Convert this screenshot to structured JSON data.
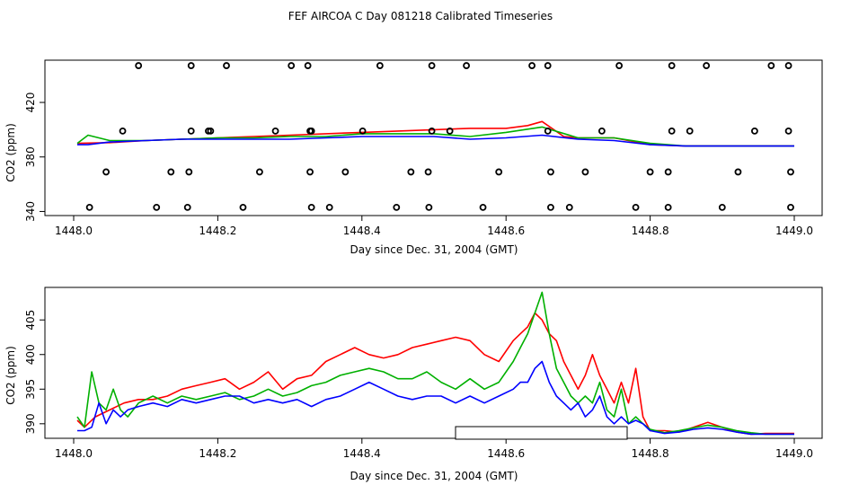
{
  "title": "FEF AIRCOA C  Day 081218  Calibrated Timeseries",
  "chart_data": [
    {
      "type": "line",
      "name": "top-panel",
      "xlabel": "Day since Dec. 31, 2004 (GMT)",
      "ylabel": "CO2 (ppm)",
      "xlim": [
        1448.0,
        1449.0
      ],
      "ylim": [
        337,
        451
      ],
      "xticks": [
        1448.0,
        1448.2,
        1448.4,
        1448.6,
        1448.8,
        1449.0
      ],
      "xtick_labels": [
        "1448.0",
        "1448.2",
        "1448.4",
        "1448.6",
        "1448.8",
        "1449.0"
      ],
      "yticks": [
        340,
        380,
        420
      ],
      "ytick_labels": [
        "340",
        "380",
        "420"
      ],
      "series": [
        {
          "name": "red",
          "color": "#ff0000",
          "x": [
            1448.005,
            1448.05,
            1448.1,
            1448.15,
            1448.2,
            1448.25,
            1448.3,
            1448.35,
            1448.4,
            1448.45,
            1448.5,
            1448.55,
            1448.6,
            1448.63,
            1448.65,
            1448.68,
            1448.7,
            1448.75,
            1448.8,
            1448.85,
            1448.9,
            1448.95,
            1449.0
          ],
          "y": [
            390,
            390.5,
            392,
            393,
            394,
            395,
            396,
            397,
            398,
            399,
            400,
            401,
            401,
            403,
            406,
            395,
            394,
            394,
            389,
            388,
            388,
            388,
            388
          ]
        },
        {
          "name": "green",
          "color": "#00b000",
          "x": [
            1448.005,
            1448.02,
            1448.05,
            1448.1,
            1448.15,
            1448.2,
            1448.25,
            1448.3,
            1448.35,
            1448.4,
            1448.45,
            1448.5,
            1448.55,
            1448.6,
            1448.65,
            1448.7,
            1448.75,
            1448.8,
            1448.85,
            1448.9,
            1448.95,
            1449.0
          ],
          "y": [
            390,
            396,
            392,
            392,
            393,
            394,
            394,
            395,
            395,
            397,
            397,
            397,
            395,
            398,
            402,
            394,
            394,
            390,
            388,
            388,
            388,
            388
          ]
        },
        {
          "name": "blue",
          "color": "#0000ff",
          "x": [
            1448.005,
            1448.02,
            1448.05,
            1448.1,
            1448.15,
            1448.2,
            1448.25,
            1448.3,
            1448.35,
            1448.4,
            1448.45,
            1448.5,
            1448.55,
            1448.6,
            1448.65,
            1448.7,
            1448.75,
            1448.8,
            1448.85,
            1448.9,
            1448.95,
            1449.0
          ],
          "y": [
            389,
            389,
            391,
            392,
            393,
            393,
            393,
            393,
            394,
            395,
            395,
            395,
            393,
            394,
            396,
            393,
            392,
            389,
            388,
            388,
            388,
            388
          ]
        }
      ],
      "points": [
        {
          "x": 1448.09,
          "y": 447
        },
        {
          "x": 1448.163,
          "y": 447
        },
        {
          "x": 1448.212,
          "y": 447
        },
        {
          "x": 1448.302,
          "y": 447
        },
        {
          "x": 1448.325,
          "y": 447
        },
        {
          "x": 1448.425,
          "y": 447
        },
        {
          "x": 1448.497,
          "y": 447
        },
        {
          "x": 1448.545,
          "y": 447
        },
        {
          "x": 1448.636,
          "y": 447
        },
        {
          "x": 1448.658,
          "y": 447
        },
        {
          "x": 1448.757,
          "y": 447
        },
        {
          "x": 1448.83,
          "y": 447
        },
        {
          "x": 1448.878,
          "y": 447
        },
        {
          "x": 1448.968,
          "y": 447
        },
        {
          "x": 1448.992,
          "y": 447
        },
        {
          "x": 1448.068,
          "y": 399
        },
        {
          "x": 1448.163,
          "y": 399
        },
        {
          "x": 1448.187,
          "y": 399
        },
        {
          "x": 1448.19,
          "y": 399
        },
        {
          "x": 1448.28,
          "y": 399
        },
        {
          "x": 1448.328,
          "y": 399
        },
        {
          "x": 1448.33,
          "y": 399
        },
        {
          "x": 1448.401,
          "y": 399
        },
        {
          "x": 1448.497,
          "y": 399
        },
        {
          "x": 1448.522,
          "y": 399
        },
        {
          "x": 1448.658,
          "y": 399
        },
        {
          "x": 1448.733,
          "y": 399
        },
        {
          "x": 1448.83,
          "y": 399
        },
        {
          "x": 1448.855,
          "y": 399
        },
        {
          "x": 1448.945,
          "y": 399
        },
        {
          "x": 1448.992,
          "y": 399
        },
        {
          "x": 1448.045,
          "y": 369
        },
        {
          "x": 1448.135,
          "y": 369
        },
        {
          "x": 1448.16,
          "y": 369
        },
        {
          "x": 1448.258,
          "y": 369
        },
        {
          "x": 1448.328,
          "y": 369
        },
        {
          "x": 1448.377,
          "y": 369
        },
        {
          "x": 1448.468,
          "y": 369
        },
        {
          "x": 1448.492,
          "y": 369
        },
        {
          "x": 1448.59,
          "y": 369
        },
        {
          "x": 1448.662,
          "y": 369
        },
        {
          "x": 1448.71,
          "y": 369
        },
        {
          "x": 1448.8,
          "y": 369
        },
        {
          "x": 1448.825,
          "y": 369
        },
        {
          "x": 1448.922,
          "y": 369
        },
        {
          "x": 1448.995,
          "y": 369
        },
        {
          "x": 1448.022,
          "y": 343
        },
        {
          "x": 1448.115,
          "y": 343
        },
        {
          "x": 1448.158,
          "y": 343
        },
        {
          "x": 1448.235,
          "y": 343
        },
        {
          "x": 1448.33,
          "y": 343
        },
        {
          "x": 1448.355,
          "y": 343
        },
        {
          "x": 1448.448,
          "y": 343
        },
        {
          "x": 1448.493,
          "y": 343
        },
        {
          "x": 1448.568,
          "y": 343
        },
        {
          "x": 1448.662,
          "y": 343
        },
        {
          "x": 1448.688,
          "y": 343
        },
        {
          "x": 1448.78,
          "y": 343
        },
        {
          "x": 1448.825,
          "y": 343
        },
        {
          "x": 1448.9,
          "y": 343
        },
        {
          "x": 1448.995,
          "y": 343
        }
      ]
    },
    {
      "type": "line",
      "name": "bottom-panel",
      "xlabel": "Day since Dec. 31, 2004 (GMT)",
      "ylabel": "CO2 (ppm)",
      "xlim": [
        1448.0,
        1449.0
      ],
      "ylim": [
        387.9,
        409.7
      ],
      "xticks": [
        1448.0,
        1448.2,
        1448.4,
        1448.6,
        1448.8,
        1449.0
      ],
      "xtick_labels": [
        "1448.0",
        "1448.2",
        "1448.4",
        "1448.6",
        "1448.8",
        "1449.0"
      ],
      "yticks": [
        390,
        395,
        400,
        405
      ],
      "ytick_labels": [
        "390",
        "395",
        "400",
        "405"
      ],
      "series": [
        {
          "name": "red",
          "color": "#ff0000",
          "x": [
            1448.005,
            1448.015,
            1448.03,
            1448.05,
            1448.07,
            1448.09,
            1448.11,
            1448.13,
            1448.15,
            1448.17,
            1448.19,
            1448.21,
            1448.23,
            1448.25,
            1448.27,
            1448.29,
            1448.31,
            1448.33,
            1448.35,
            1448.37,
            1448.39,
            1448.41,
            1448.43,
            1448.45,
            1448.47,
            1448.49,
            1448.51,
            1448.53,
            1448.55,
            1448.57,
            1448.59,
            1448.61,
            1448.62,
            1448.63,
            1448.64,
            1448.65,
            1448.66,
            1448.67,
            1448.68,
            1448.69,
            1448.7,
            1448.71,
            1448.72,
            1448.73,
            1448.74,
            1448.75,
            1448.76,
            1448.77,
            1448.78,
            1448.79,
            1448.8,
            1448.82,
            1448.84,
            1448.86,
            1448.88,
            1448.9,
            1448.92,
            1448.94,
            1448.96,
            1448.98,
            1449.0
          ],
          "y": [
            390.5,
            389.5,
            391,
            392,
            393,
            393.5,
            393.5,
            394,
            395,
            395.5,
            396,
            396.5,
            395,
            396,
            397.5,
            395,
            396.5,
            397,
            399,
            400,
            401,
            400,
            399.5,
            400,
            401,
            401.5,
            402,
            402.5,
            402,
            400,
            399,
            402,
            403,
            404,
            406,
            405,
            403,
            402,
            399,
            397,
            395,
            397,
            400,
            397,
            395,
            393,
            396,
            393,
            398,
            391,
            389,
            389,
            388.8,
            389.5,
            390.2,
            389.5,
            388.8,
            388.5,
            388.6,
            388.6,
            388.6
          ]
        },
        {
          "name": "green",
          "color": "#00b000",
          "x": [
            1448.005,
            1448.015,
            1448.025,
            1448.035,
            1448.045,
            1448.055,
            1448.065,
            1448.075,
            1448.09,
            1448.11,
            1448.13,
            1448.15,
            1448.17,
            1448.19,
            1448.21,
            1448.23,
            1448.25,
            1448.27,
            1448.29,
            1448.31,
            1448.33,
            1448.35,
            1448.37,
            1448.39,
            1448.41,
            1448.43,
            1448.45,
            1448.47,
            1448.49,
            1448.51,
            1448.53,
            1448.55,
            1448.57,
            1448.59,
            1448.61,
            1448.62,
            1448.63,
            1448.64,
            1448.65,
            1448.66,
            1448.67,
            1448.68,
            1448.69,
            1448.7,
            1448.71,
            1448.72,
            1448.73,
            1448.74,
            1448.75,
            1448.76,
            1448.77,
            1448.78,
            1448.79,
            1448.8,
            1448.82,
            1448.84,
            1448.86,
            1448.88,
            1448.9,
            1448.92,
            1448.94,
            1448.96,
            1448.98,
            1449.0
          ],
          "y": [
            391,
            389.5,
            397.5,
            393,
            392,
            395,
            392,
            391,
            393,
            394,
            393,
            394,
            393.5,
            394,
            394.5,
            393.5,
            394,
            395,
            394,
            394.5,
            395.5,
            396,
            397,
            397.5,
            398,
            397.5,
            396.5,
            396.5,
            397.5,
            396,
            395,
            396.5,
            395,
            396,
            399,
            401,
            403,
            406,
            409,
            403,
            398,
            396,
            394,
            393,
            394,
            393,
            396,
            392,
            391,
            395,
            390,
            391,
            390,
            389.2,
            388.7,
            389,
            389.4,
            389.8,
            389.5,
            389,
            388.7,
            388.5,
            388.5,
            388.5
          ]
        },
        {
          "name": "blue",
          "color": "#0000ff",
          "x": [
            1448.005,
            1448.015,
            1448.025,
            1448.035,
            1448.045,
            1448.055,
            1448.065,
            1448.075,
            1448.09,
            1448.11,
            1448.13,
            1448.15,
            1448.17,
            1448.19,
            1448.21,
            1448.23,
            1448.25,
            1448.27,
            1448.29,
            1448.31,
            1448.33,
            1448.35,
            1448.37,
            1448.39,
            1448.41,
            1448.43,
            1448.45,
            1448.47,
            1448.49,
            1448.51,
            1448.53,
            1448.55,
            1448.57,
            1448.59,
            1448.61,
            1448.62,
            1448.63,
            1448.64,
            1448.65,
            1448.66,
            1448.67,
            1448.68,
            1448.69,
            1448.7,
            1448.71,
            1448.72,
            1448.73,
            1448.74,
            1448.75,
            1448.76,
            1448.77,
            1448.78,
            1448.79,
            1448.8,
            1448.82,
            1448.84,
            1448.86,
            1448.88,
            1448.9,
            1448.92,
            1448.94,
            1448.96,
            1448.98,
            1449.0
          ],
          "y": [
            389,
            389,
            389.5,
            393,
            390,
            392,
            391,
            392,
            392.5,
            393,
            392.5,
            393.5,
            393,
            393.5,
            394,
            394,
            393,
            393.5,
            393,
            393.5,
            392.5,
            393.5,
            394,
            395,
            396,
            395,
            394,
            393.5,
            394,
            394,
            393,
            394,
            393,
            394,
            395,
            396,
            396,
            398,
            399,
            396,
            394,
            393,
            392,
            393,
            391,
            392,
            394,
            391,
            390,
            391,
            390,
            390.5,
            390,
            389,
            388.6,
            388.8,
            389.2,
            389.4,
            389.2,
            388.8,
            388.5,
            388.5,
            388.5,
            388.5
          ]
        }
      ]
    }
  ]
}
